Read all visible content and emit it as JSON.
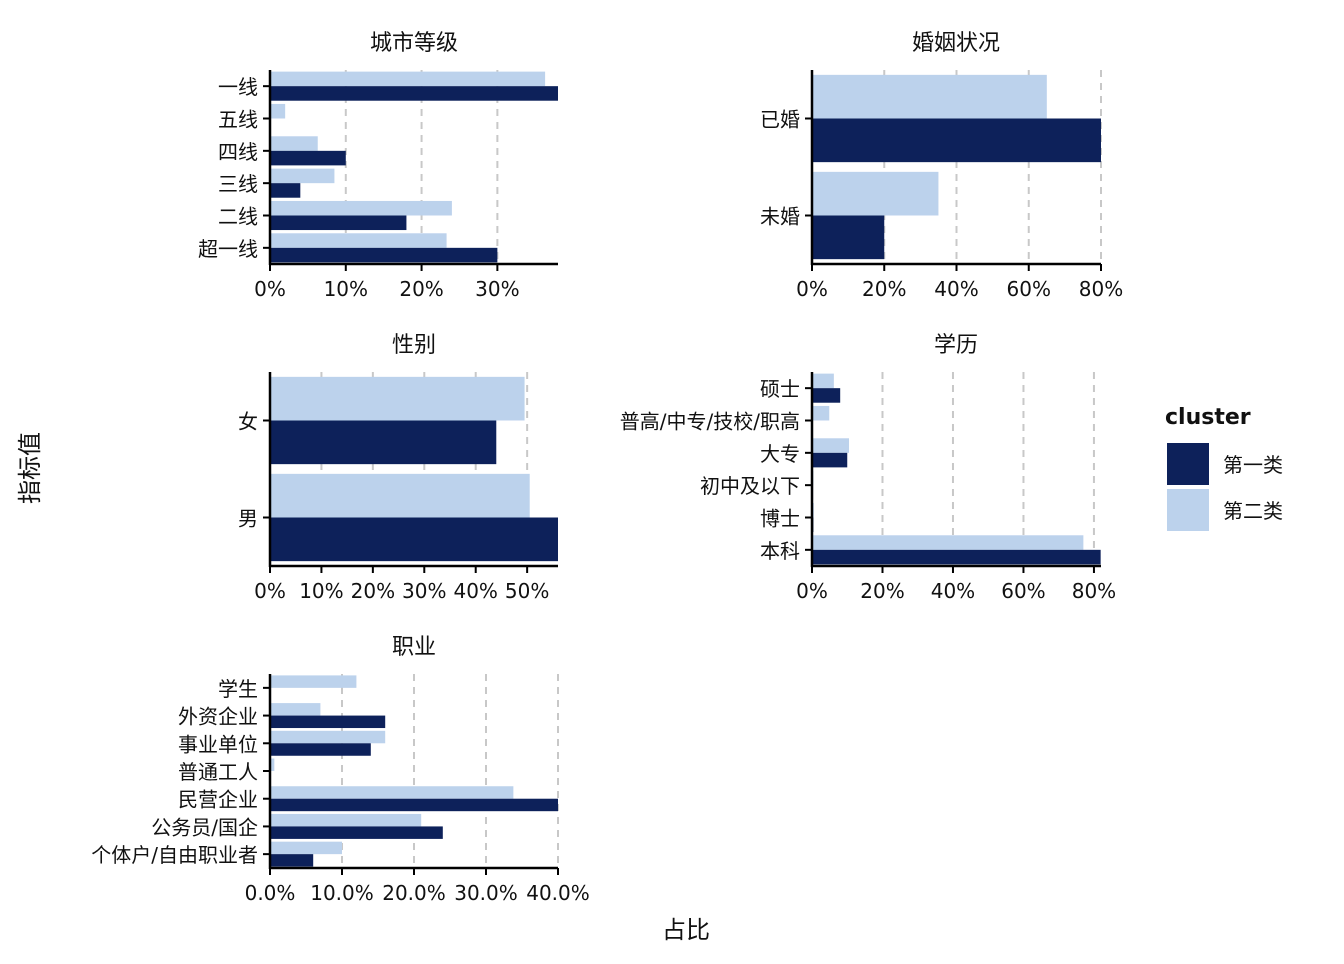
{
  "labels": {
    "x_title": "占比",
    "y_title": "指标值",
    "legend_title": "cluster"
  },
  "colors": {
    "第一类": "#0d215a",
    "第二类": "#bcd2ec",
    "grid": "#c8c8c8",
    "axis": "#000000"
  },
  "legend": {
    "items": [
      {
        "label": "第一类",
        "color_key": "第一类"
      },
      {
        "label": "第二类",
        "color_key": "第二类"
      }
    ]
  },
  "chart_data": [
    {
      "type": "bar",
      "orientation": "horizontal",
      "title": "城市等级",
      "categories": [
        "一线",
        "五线",
        "四线",
        "三线",
        "二线",
        "超一线"
      ],
      "series": [
        {
          "name": "第一类",
          "values": [
            38.0,
            0.0,
            10.0,
            4.0,
            18.0,
            30.0
          ]
        },
        {
          "name": "第二类",
          "values": [
            36.3,
            2.0,
            6.3,
            8.5,
            24.0,
            23.3
          ]
        }
      ],
      "xlim": [
        0,
        38
      ],
      "ticks": [
        0,
        10,
        20,
        30
      ],
      "tick_labels": [
        "0%",
        "10%",
        "20%",
        "30%"
      ],
      "grid": true
    },
    {
      "type": "bar",
      "orientation": "horizontal",
      "title": "婚姻状况",
      "categories": [
        "已婚",
        "未婚"
      ],
      "series": [
        {
          "name": "第一类",
          "values": [
            80.0,
            20.0
          ]
        },
        {
          "name": "第二类",
          "values": [
            65.0,
            35.0
          ]
        }
      ],
      "xlim": [
        0,
        80
      ],
      "ticks": [
        0,
        20,
        40,
        60,
        80
      ],
      "tick_labels": [
        "0%",
        "20%",
        "40%",
        "60%",
        "80%"
      ],
      "grid": true
    },
    {
      "type": "bar",
      "orientation": "horizontal",
      "title": "性别",
      "categories": [
        "女",
        "男"
      ],
      "series": [
        {
          "name": "第一类",
          "values": [
            44.0,
            56.0
          ]
        },
        {
          "name": "第二类",
          "values": [
            49.5,
            50.5
          ]
        }
      ],
      "xlim": [
        0,
        56
      ],
      "ticks": [
        0,
        10,
        20,
        30,
        40,
        50
      ],
      "tick_labels": [
        "0%",
        "10%",
        "20%",
        "30%",
        "40%",
        "50%"
      ],
      "grid": true
    },
    {
      "type": "bar",
      "orientation": "horizontal",
      "title": "学历",
      "categories": [
        "硕士",
        "普高/中专/技校/职高",
        "大专",
        "初中及以下",
        "博士",
        "本科"
      ],
      "series": [
        {
          "name": "第一类",
          "values": [
            8.0,
            0.0,
            10.0,
            0.3,
            0.4,
            81.9
          ]
        },
        {
          "name": "第二类",
          "values": [
            6.2,
            4.9,
            10.5,
            0.4,
            0.5,
            77.0
          ]
        }
      ],
      "xlim": [
        0,
        82
      ],
      "ticks": [
        0,
        20,
        40,
        60,
        80
      ],
      "tick_labels": [
        "0%",
        "20%",
        "40%",
        "60%",
        "80%"
      ],
      "grid": true
    },
    {
      "type": "bar",
      "orientation": "horizontal",
      "title": "职业",
      "categories": [
        "学生",
        "外资企业",
        "事业单位",
        "普通工人",
        "民营企业",
        "公务员/国企",
        "个体户/自由职业者"
      ],
      "series": [
        {
          "name": "第一类",
          "values": [
            0.0,
            16.0,
            14.0,
            0.0,
            40.0,
            24.0,
            6.0
          ]
        },
        {
          "name": "第二类",
          "values": [
            12.0,
            7.0,
            16.0,
            0.6,
            33.8,
            21.0,
            10.0
          ]
        }
      ],
      "xlim": [
        0,
        40
      ],
      "ticks": [
        0,
        10,
        20,
        30,
        40
      ],
      "tick_labels": [
        "0.0%",
        "10.0%",
        "20.0%",
        "30.0%",
        "40.0%"
      ],
      "grid": true
    }
  ]
}
